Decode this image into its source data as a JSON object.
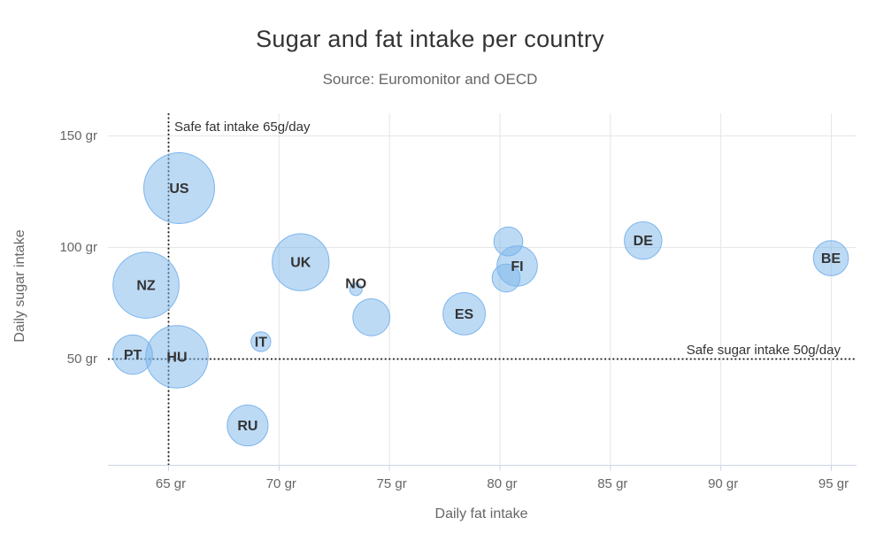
{
  "title": "Sugar and fat intake per country",
  "subtitle": "Source: Euromonitor and OECD",
  "colors": {
    "title_text": "#333333",
    "subtitle_text": "#666666",
    "axis_text": "#666666",
    "grid_line": "#e6e6e6",
    "axis_line": "#ccd6eb",
    "plot_line": "#111111",
    "bubble_fill": "rgba(124,181,236,0.5)",
    "bubble_stroke": "#7cb5ec",
    "bubble_label_text": "#333333"
  },
  "chart_data": {
    "type": "scatter",
    "subtype": "bubble",
    "title": "Sugar and fat intake per country",
    "subtitle": "Source: Euromonitor and OECD",
    "xlabel": "Daily fat intake",
    "ylabel": "Daily sugar intake",
    "x_unit": "gr",
    "y_unit": "gr",
    "xlim": [
      62.3,
      96.1
    ],
    "ylim": [
      2.4,
      159.9
    ],
    "grid": true,
    "legend": "none",
    "x_ticks": [
      {
        "value": 65,
        "label": "65 gr"
      },
      {
        "value": 70,
        "label": "70 gr"
      },
      {
        "value": 75,
        "label": "75 gr"
      },
      {
        "value": 80,
        "label": "80 gr"
      },
      {
        "value": 85,
        "label": "85 gr"
      },
      {
        "value": 90,
        "label": "90 gr"
      },
      {
        "value": 95,
        "label": "95 gr"
      }
    ],
    "y_ticks": [
      {
        "value": 50,
        "label": "50 gr"
      },
      {
        "value": 100,
        "label": "100 gr"
      },
      {
        "value": 150,
        "label": "150 gr"
      }
    ],
    "plot_lines": [
      {
        "axis": "x",
        "value": 65,
        "label": "Safe fat intake 65g/day",
        "style": "dotted"
      },
      {
        "axis": "y",
        "value": 50,
        "label": "Safe sugar intake 50g/day",
        "style": "dotted"
      }
    ],
    "points": [
      {
        "label": "BE",
        "x": 95.0,
        "y": 95.0,
        "z": 13.8,
        "label_visible": true
      },
      {
        "label": "DE",
        "x": 86.5,
        "y": 102.9,
        "z": 14.7,
        "label_visible": true
      },
      {
        "label": "FI",
        "x": 80.8,
        "y": 91.5,
        "z": 15.8,
        "label_visible": true
      },
      {
        "label": "",
        "x": 80.4,
        "y": 102.5,
        "z": 12.0,
        "label_visible": false
      },
      {
        "label": "",
        "x": 80.3,
        "y": 86.1,
        "z": 11.8,
        "label_visible": false
      },
      {
        "label": "ES",
        "x": 78.4,
        "y": 70.1,
        "z": 16.6,
        "label_visible": true
      },
      {
        "label": "",
        "x": 74.2,
        "y": 68.5,
        "z": 14.5,
        "label_visible": false
      },
      {
        "label": "NO",
        "x": 73.5,
        "y": 81.0,
        "z": 10.0,
        "label_visible": true
      },
      {
        "label": "UK",
        "x": 71.0,
        "y": 93.2,
        "z": 24.7,
        "label_visible": true
      },
      {
        "label": "IT",
        "x": 69.2,
        "y": 57.6,
        "z": 10.4,
        "label_visible": true
      },
      {
        "label": "RU",
        "x": 68.6,
        "y": 20.0,
        "z": 16.0,
        "label_visible": true
      },
      {
        "label": "US",
        "x": 65.5,
        "y": 126.4,
        "z": 35.3,
        "label_visible": true
      },
      {
        "label": "HU",
        "x": 65.4,
        "y": 50.8,
        "z": 28.5,
        "label_visible": true
      },
      {
        "label": "PT",
        "x": 63.4,
        "y": 51.8,
        "z": 15.4,
        "label_visible": true
      },
      {
        "label": "NZ",
        "x": 64.0,
        "y": 82.9,
        "z": 31.3,
        "label_visible": true
      }
    ]
  }
}
